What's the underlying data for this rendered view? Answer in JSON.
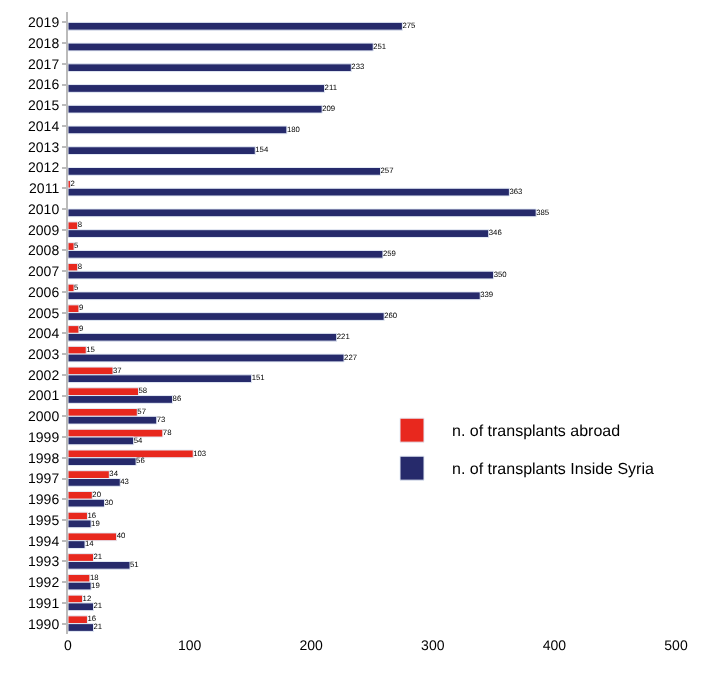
{
  "chart_data": {
    "type": "bar",
    "orientation": "horizontal",
    "categories": [
      "2019",
      "2018",
      "2017",
      "2016",
      "2015",
      "2014",
      "2013",
      "2012",
      "2011",
      "2010",
      "2009",
      "2008",
      "2007",
      "2006",
      "2005",
      "2004",
      "2003",
      "2002",
      "2001",
      "2000",
      "1999",
      "1998",
      "1997",
      "1996",
      "1995",
      "1994",
      "1993",
      "1992",
      "1991",
      "1990"
    ],
    "series": [
      {
        "name": "n. of transplants abroad",
        "color": "#e8281e",
        "values": [
          null,
          null,
          null,
          null,
          null,
          null,
          null,
          null,
          2,
          null,
          8,
          5,
          8,
          5,
          9,
          9,
          15,
          37,
          58,
          57,
          78,
          103,
          34,
          20,
          16,
          40,
          21,
          18,
          12,
          16
        ]
      },
      {
        "name": "n. of transplants Inside Syria",
        "color": "#262a6b",
        "values": [
          275,
          251,
          233,
          211,
          209,
          180,
          154,
          257,
          363,
          385,
          346,
          259,
          350,
          339,
          260,
          221,
          227,
          151,
          86,
          73,
          54,
          56,
          43,
          30,
          19,
          14,
          51,
          19,
          21,
          21
        ]
      }
    ],
    "xlim": [
      0,
      500
    ],
    "xticks": [
      0,
      100,
      200,
      300,
      400,
      500
    ],
    "data_labels": true,
    "legend": "bottom right"
  }
}
